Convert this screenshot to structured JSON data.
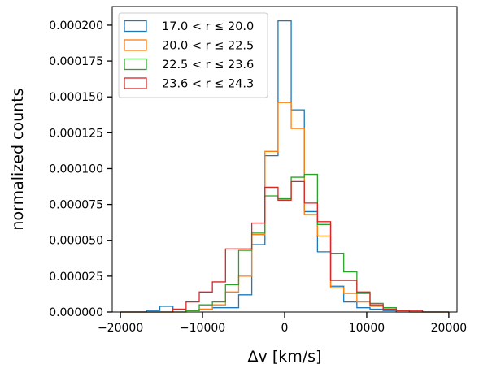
{
  "chart_data": {
    "type": "histogram",
    "xlabel": "Δv [km/s]",
    "ylabel": "normalized counts",
    "xlim": [
      -21000,
      21000
    ],
    "ylim": [
      0,
      0.000213
    ],
    "xticks": [
      -20000,
      -10000,
      0,
      10000,
      20000
    ],
    "xtick_labels": [
      "−20000",
      "−10000",
      "0",
      "10000",
      "20000"
    ],
    "yticks": [
      0,
      2.5e-05,
      5e-05,
      7.5e-05,
      0.0001,
      0.000125,
      0.00015,
      0.000175,
      0.0002
    ],
    "ytick_labels": [
      "0.000000",
      "0.000025",
      "0.000050",
      "0.000075",
      "0.000100",
      "0.000125",
      "0.000150",
      "0.000175",
      "0.000200"
    ],
    "bin_edges": [
      -20000,
      -18400,
      -16800,
      -15200,
      -13600,
      -12000,
      -10400,
      -8800,
      -7200,
      -5600,
      -4000,
      -2400,
      -800,
      800,
      2400,
      4000,
      5600,
      7200,
      8800,
      10400,
      12000,
      13600,
      15200,
      16800,
      18400,
      20000
    ],
    "legend_position": "upper left",
    "series": [
      {
        "name": "17.0 < r ≤ 20.0",
        "color": "#1f77b4",
        "values": [
          0,
          0,
          1e-06,
          4e-06,
          2e-06,
          1e-06,
          2e-06,
          3e-06,
          3e-06,
          1.2e-05,
          4.7e-05,
          0.000109,
          0.000203,
          0.000141,
          7e-05,
          4.2e-05,
          1.8e-05,
          7e-06,
          3e-06,
          2e-06,
          1e-06,
          0,
          0,
          0,
          0
        ]
      },
      {
        "name": "20.0 < r ≤ 22.5",
        "color": "#ff7f0e",
        "values": [
          0,
          0,
          0,
          0,
          0,
          1e-06,
          2e-06,
          5e-06,
          1.4e-05,
          2.5e-05,
          5.4e-05,
          0.000112,
          0.000146,
          0.000128,
          6.8e-05,
          5.3e-05,
          1.7e-05,
          1.3e-05,
          7e-06,
          4e-06,
          2e-06,
          1e-06,
          0,
          0,
          0
        ]
      },
      {
        "name": "22.5 < r ≤ 23.6",
        "color": "#2ca02c",
        "values": [
          0,
          0,
          0,
          0,
          0,
          1e-06,
          5e-06,
          7e-06,
          1.9e-05,
          4.3e-05,
          5.5e-05,
          8.1e-05,
          7.9e-05,
          9.4e-05,
          9.6e-05,
          6.1e-05,
          4.1e-05,
          2.8e-05,
          1.3e-05,
          6e-06,
          3e-06,
          1e-06,
          0,
          0,
          0
        ]
      },
      {
        "name": "23.6 < r ≤ 24.3",
        "color": "#d62728",
        "values": [
          0,
          0,
          0,
          0,
          2e-06,
          7e-06,
          1.4e-05,
          2.1e-05,
          4.4e-05,
          4.4e-05,
          6.2e-05,
          8.7e-05,
          7.8e-05,
          9.1e-05,
          7.6e-05,
          6.3e-05,
          2.2e-05,
          2.2e-05,
          1.4e-05,
          5e-06,
          2e-06,
          1e-06,
          1e-06,
          0,
          0
        ]
      }
    ]
  }
}
